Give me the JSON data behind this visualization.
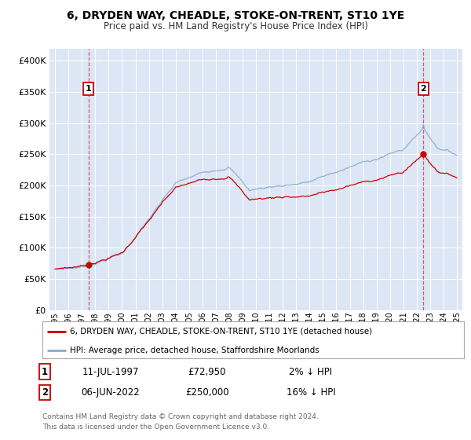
{
  "title": "6, DRYDEN WAY, CHEADLE, STOKE-ON-TRENT, ST10 1YE",
  "subtitle": "Price paid vs. HM Land Registry's House Price Index (HPI)",
  "legend_label_red": "6, DRYDEN WAY, CHEADLE, STOKE-ON-TRENT, ST10 1YE (detached house)",
  "legend_label_blue": "HPI: Average price, detached house, Staffordshire Moorlands",
  "annotation1_label": "1",
  "annotation1_date": "11-JUL-1997",
  "annotation1_price": "£72,950",
  "annotation1_hpi": "2% ↓ HPI",
  "annotation2_label": "2",
  "annotation2_date": "06-JUN-2022",
  "annotation2_price": "£250,000",
  "annotation2_hpi": "16% ↓ HPI",
  "footer1": "Contains HM Land Registry data © Crown copyright and database right 2024.",
  "footer2": "This data is licensed under the Open Government Licence v3.0.",
  "bg_color": "#ffffff",
  "plot_bg_color": "#dce6f5",
  "line_color_red": "#cc0000",
  "line_color_blue": "#88aacc",
  "marker_color_red": "#cc0000",
  "ylim_min": 0,
  "ylim_max": 420000,
  "sale1_year_idx": 30,
  "sale1_price": 72950,
  "sale2_year_idx": 330,
  "sale2_price": 250000
}
